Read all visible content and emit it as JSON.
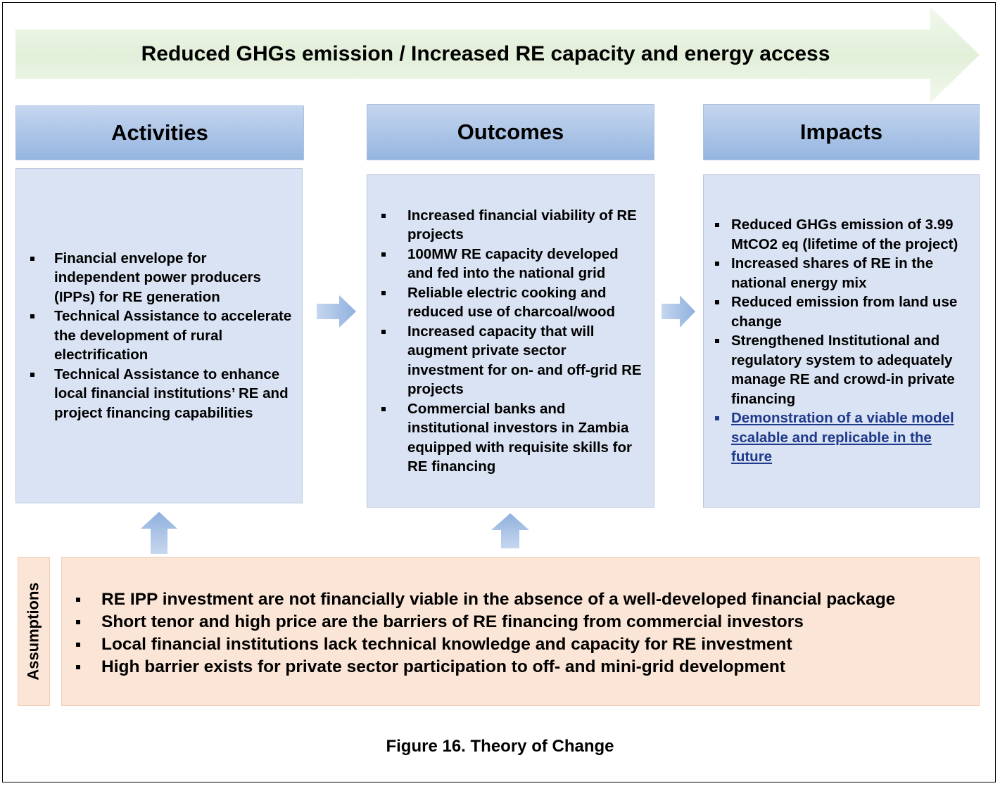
{
  "banner": "Reduced GHGs emission / Increased RE capacity and energy access",
  "columns": [
    {
      "heading": "Activities",
      "items": [
        "Financial envelope for independent power producers (IPPs) for RE generation",
        "Technical Assistance to accelerate the development of rural electrification",
        "Technical Assistance to enhance local financial institutions’ RE and project financing capabilities"
      ]
    },
    {
      "heading": "Outcomes",
      "items": [
        "Increased financial viability of RE projects",
        "100MW RE capacity developed and fed into the national grid",
        "Reliable electric cooking and reduced use of charcoal/wood",
        "Increased capacity that will augment private sector investment for on- and off-grid RE projects",
        "Commercial banks and institutional investors in Zambia equipped with requisite skills for RE financing"
      ]
    },
    {
      "heading": "Impacts",
      "items": [
        "Reduced GHGs emission of 3.99 MtCO2 eq (lifetime of the project)",
        "Increased shares of RE in the national energy mix",
        "Reduced emission from land use change",
        "Strengthened Institutional and regulatory system to adequately manage RE and crowd-in private financing",
        "Demonstration of a viable model scalable and replicable in the future"
      ]
    }
  ],
  "assumptions": {
    "label": "Assumptions",
    "items": [
      "RE IPP investment are not financially viable in the absence of a well-developed financial package",
      "Short tenor and high price are the barriers of RE financing from commercial investors",
      "Local financial institutions lack technical knowledge and capacity for RE investment",
      "High barrier exists for private sector participation to off- and mini-grid development"
    ]
  },
  "caption": "Figure 16. Theory of Change"
}
